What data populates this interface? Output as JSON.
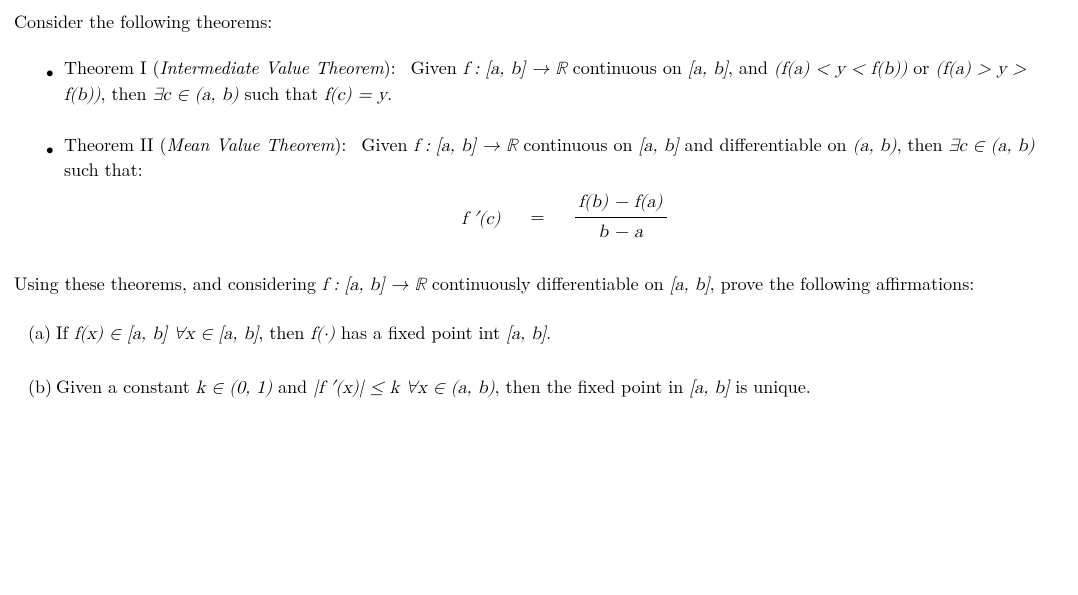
{
  "intro": "Consider the following theorems:",
  "theorems": [
    {
      "label": "Theorem I",
      "name": "Intermediate Value Theorem",
      "body_pre": "Given ",
      "body_math1": "f : [a, b] → ℝ",
      "body_mid1": " continuous on ",
      "body_math2": "[a, b]",
      "body_mid2": ", and ",
      "body_math3": "(f(a) < y < f(b))",
      "body_or": " or ",
      "body_math4": "(f(a) > y > f(b))",
      "body_mid3": ", then ",
      "body_math5": "∃c ∈ (a, b)",
      "body_mid4": " such that ",
      "body_math6": "f(c) = y",
      "body_end": "."
    },
    {
      "label": "Theorem II",
      "name": "Mean Value Theorem",
      "body_pre": "Given ",
      "body_math1": "f : [a, b] → ℝ",
      "body_mid1": " continuous on ",
      "body_math2": "[a, b]",
      "body_mid2": " and differentiable on ",
      "body_math3": "(a, b)",
      "body_mid3": ", then ",
      "body_math4": "∃c ∈ (a, b)",
      "body_mid4": " such that:",
      "eq": {
        "lhs": "f ′(c)",
        "eqsym": "=",
        "num": "f(b) − f(a)",
        "den": "b − a"
      }
    }
  ],
  "bridge": {
    "pre": "Using these theorems, and considering ",
    "m1": "f : [a, b] → ℝ",
    "mid": " continuously differentiable on ",
    "m2": "[a, b]",
    "post": ", prove the following affirmations:"
  },
  "parts": [
    {
      "marker": "(a)",
      "pre": "If ",
      "m1": "f(x) ∈ [a, b] ∀x ∈ [a, b]",
      "mid": ", then ",
      "m2": "f(·)",
      "post": " has a fixed point int ",
      "m3": "[a, b]",
      "end": "."
    },
    {
      "marker": "(b)",
      "pre": "Given a constant ",
      "m1": "k ∈ (0, 1)",
      "mid1": " and ",
      "m2": "|f ′(x)| ≤ k ∀x ∈ (a, b)",
      "mid2": ", then the fixed point in ",
      "m3": "[a, b]",
      "post": " is unique."
    }
  ],
  "style": {
    "text_color": "#000000",
    "bg_color": "#ffffff",
    "font_size_pt": 14,
    "eq_font_size_pt": 14
  }
}
